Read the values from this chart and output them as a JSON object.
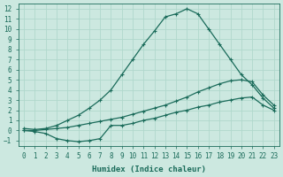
{
  "xlabel": "Humidex (Indice chaleur)",
  "xlim": [
    -0.5,
    23.5
  ],
  "ylim": [
    -1.5,
    12.5
  ],
  "xticks": [
    0,
    1,
    2,
    3,
    4,
    5,
    6,
    7,
    8,
    9,
    10,
    11,
    12,
    13,
    14,
    15,
    16,
    17,
    18,
    19,
    20,
    21,
    22,
    23
  ],
  "yticks": [
    -1,
    0,
    1,
    2,
    3,
    4,
    5,
    6,
    7,
    8,
    9,
    10,
    11,
    12
  ],
  "bg_color": "#cce8e0",
  "grid_color": "#b0d8cc",
  "line_color": "#1a6b5a",
  "curves": [
    {
      "x": [
        0,
        1,
        2,
        3,
        4,
        5,
        6,
        7,
        8,
        9,
        10,
        11,
        12,
        13,
        14,
        15,
        16,
        17,
        18,
        19,
        20,
        21,
        22,
        23
      ],
      "y": [
        0.2,
        0.1,
        0.2,
        0.5,
        1.0,
        1.5,
        2.2,
        3.0,
        4.0,
        5.5,
        7.0,
        8.5,
        9.8,
        11.2,
        11.5,
        12.0,
        11.5,
        10.0,
        8.5,
        7.0,
        5.5,
        4.5,
        3.2,
        2.2
      ]
    },
    {
      "x": [
        0,
        1,
        2,
        3,
        4,
        5,
        6,
        7,
        8,
        9,
        10,
        11,
        12,
        13,
        14,
        15,
        16,
        17,
        18,
        19,
        20,
        21,
        22,
        23
      ],
      "y": [
        0.0,
        0.0,
        0.1,
        0.2,
        0.3,
        0.5,
        0.7,
        0.9,
        1.1,
        1.3,
        1.6,
        1.9,
        2.2,
        2.5,
        2.9,
        3.3,
        3.8,
        4.2,
        4.6,
        4.9,
        5.0,
        4.8,
        3.5,
        2.5
      ]
    },
    {
      "x": [
        0,
        1,
        2,
        3,
        4,
        5,
        6,
        7,
        8,
        9,
        10,
        11,
        12,
        13,
        14,
        15,
        16,
        17,
        18,
        19,
        20,
        21,
        22,
        23
      ],
      "y": [
        0.0,
        -0.1,
        -0.3,
        -0.8,
        -1.0,
        -1.1,
        -1.0,
        -0.8,
        0.5,
        0.5,
        0.7,
        1.0,
        1.2,
        1.5,
        1.8,
        2.0,
        2.3,
        2.5,
        2.8,
        3.0,
        3.2,
        3.3,
        2.5,
        2.0
      ]
    }
  ]
}
